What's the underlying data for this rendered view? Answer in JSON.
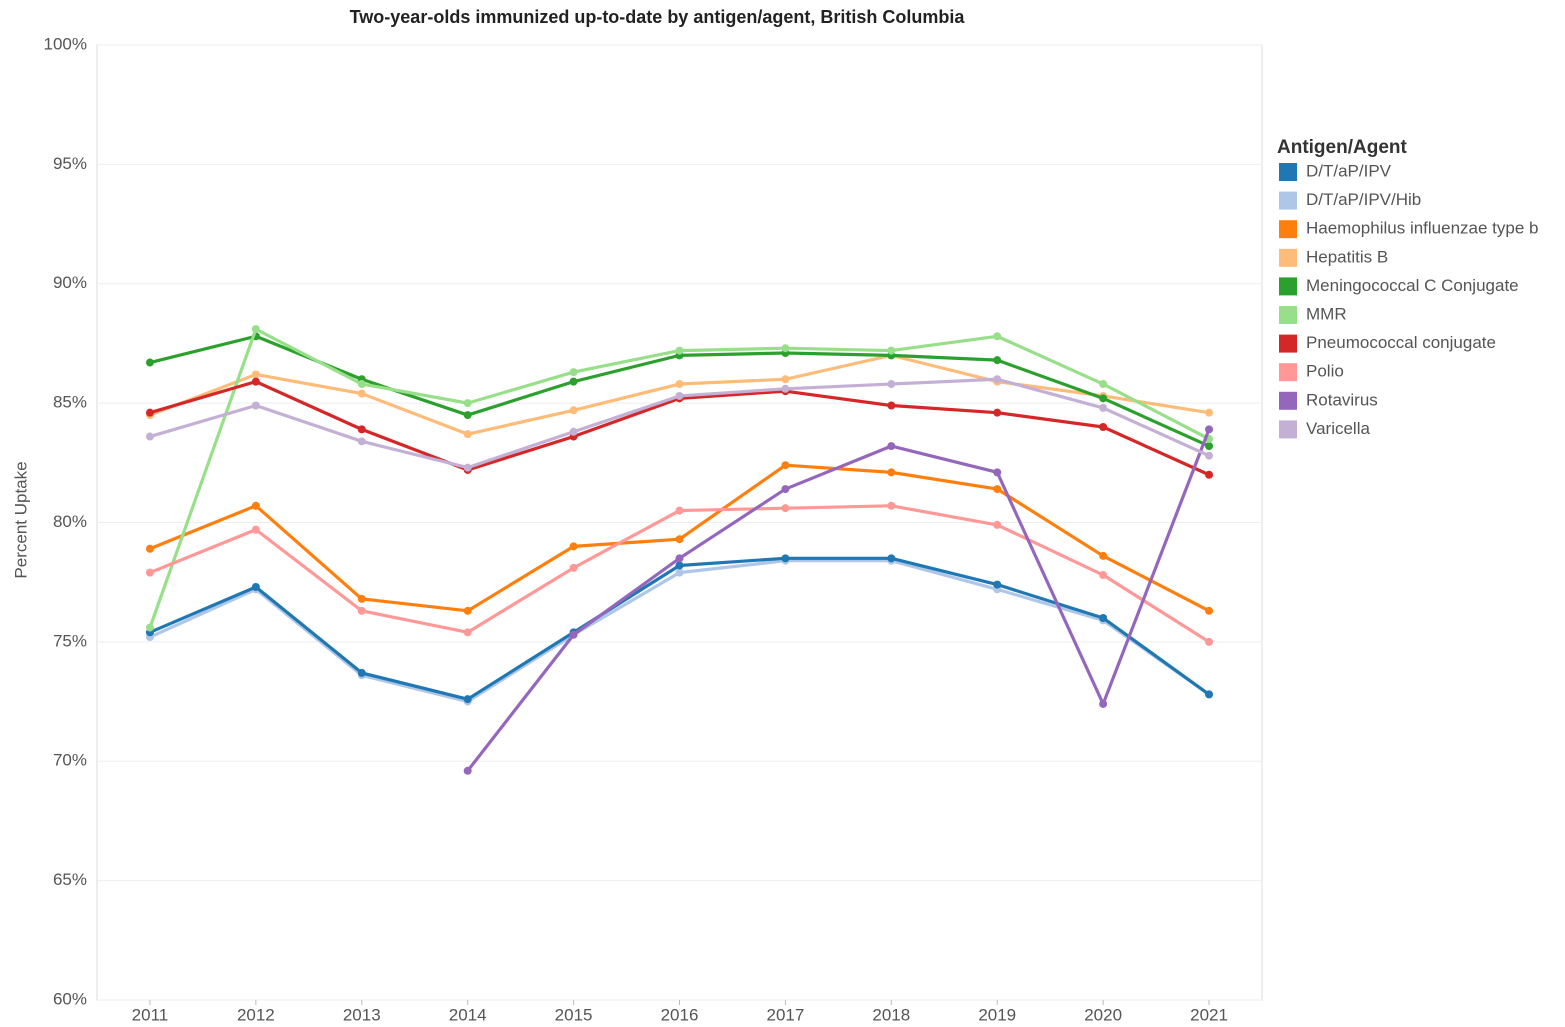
{
  "chart_data": {
    "type": "line",
    "title": "Two-year-olds immunized up-to-date by antigen/agent, British Columbia",
    "y_label": "Percent Uptake",
    "legend_title": "Antigen/Agent",
    "legend_position": "right",
    "grid": true,
    "categories": [
      "2011",
      "2012",
      "2013",
      "2014",
      "2015",
      "2016",
      "2017",
      "2018",
      "2019",
      "2020",
      "2021"
    ],
    "ylim": [
      60,
      100
    ],
    "yticks": [
      {
        "value": 60,
        "label": "60%"
      },
      {
        "value": 65,
        "label": "65%"
      },
      {
        "value": 70,
        "label": "70%"
      },
      {
        "value": 75,
        "label": "75%"
      },
      {
        "value": 80,
        "label": "80%"
      },
      {
        "value": 85,
        "label": "85%"
      },
      {
        "value": 90,
        "label": "90%"
      },
      {
        "value": 95,
        "label": "95%"
      },
      {
        "value": 100,
        "label": "100%"
      }
    ],
    "series": [
      {
        "name": "D/T/aP/IPV/Hib",
        "color": "#aec7e8",
        "values": [
          75.2,
          77.2,
          73.6,
          72.5,
          75.3,
          77.9,
          78.4,
          78.4,
          77.2,
          75.9,
          72.8
        ]
      },
      {
        "name": "D/T/aP/IPV",
        "color": "#1f77b4",
        "values": [
          75.4,
          77.3,
          73.7,
          72.6,
          75.4,
          78.2,
          78.5,
          78.5,
          77.4,
          76.0,
          72.8
        ]
      },
      {
        "name": "Haemophilus influenzae type b",
        "color": "#ff7f0e",
        "values": [
          78.9,
          80.7,
          76.8,
          76.3,
          79.0,
          79.3,
          82.4,
          82.1,
          81.4,
          78.6,
          76.3
        ]
      },
      {
        "name": "Hepatitis B",
        "color": "#ffbb78",
        "values": [
          84.5,
          86.2,
          85.4,
          83.7,
          84.7,
          85.8,
          86.0,
          87.0,
          85.9,
          85.3,
          84.6
        ]
      },
      {
        "name": "Meningococcal C Conjugate",
        "color": "#2ca02c",
        "values": [
          86.7,
          87.8,
          86.0,
          84.5,
          85.9,
          87.0,
          87.1,
          87.0,
          86.8,
          85.2,
          83.2
        ]
      },
      {
        "name": "MMR",
        "color": "#98df8a",
        "values": [
          75.6,
          88.1,
          85.8,
          85.0,
          86.3,
          87.2,
          87.3,
          87.2,
          87.8,
          85.8,
          83.5
        ]
      },
      {
        "name": "Pneumococcal conjugate",
        "color": "#d62728",
        "values": [
          84.6,
          85.9,
          83.9,
          82.2,
          83.6,
          85.2,
          85.5,
          84.9,
          84.6,
          84.0,
          82.0
        ]
      },
      {
        "name": "Polio",
        "color": "#ff9896",
        "values": [
          77.9,
          79.7,
          76.3,
          75.4,
          78.1,
          80.5,
          80.6,
          80.7,
          79.9,
          77.8,
          75.0
        ]
      },
      {
        "name": "Rotavirus",
        "color": "#9467bd",
        "values": [
          null,
          null,
          null,
          69.6,
          75.3,
          78.5,
          81.4,
          83.2,
          82.1,
          72.4,
          83.9
        ]
      },
      {
        "name": "Varicella",
        "color": "#c5b0d5",
        "values": [
          83.6,
          84.9,
          83.4,
          82.3,
          83.8,
          85.3,
          85.6,
          85.8,
          86.0,
          84.8,
          82.8
        ]
      }
    ],
    "legend_order": [
      1,
      0,
      2,
      3,
      4,
      5,
      6,
      7,
      8,
      9
    ]
  }
}
